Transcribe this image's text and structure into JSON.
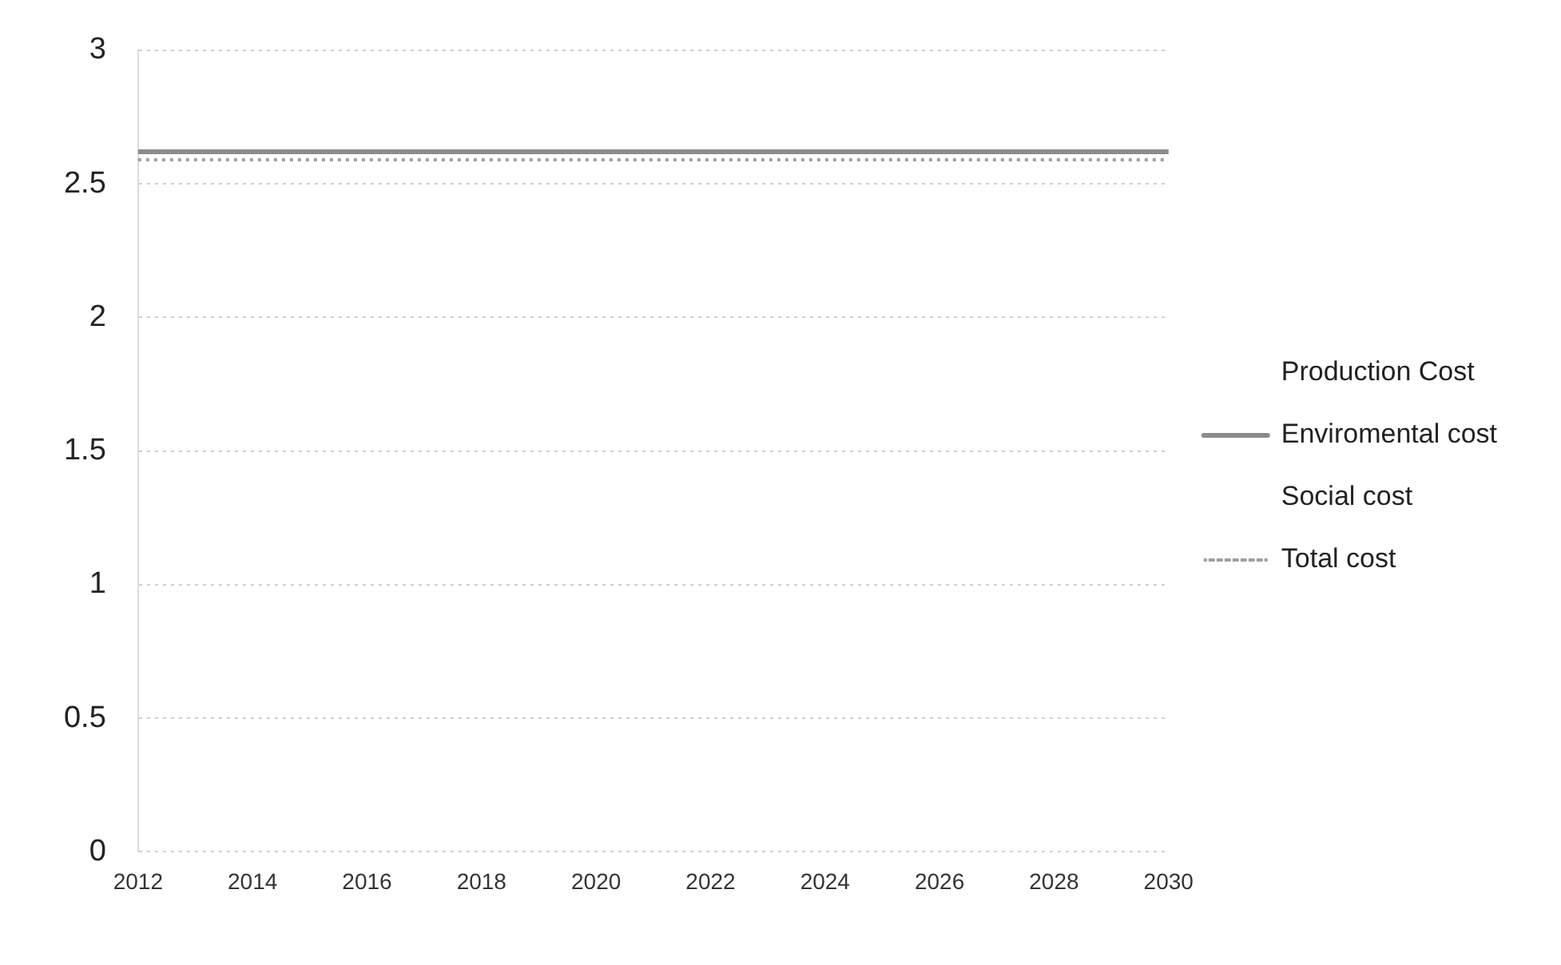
{
  "chart_data": {
    "type": "line",
    "categories": [
      "2012",
      "2014",
      "2016",
      "2018",
      "2020",
      "2022",
      "2024",
      "2026",
      "2028",
      "2030"
    ],
    "series": [
      {
        "name": "Production Cost",
        "values": [
          null,
          null,
          null,
          null,
          null,
          null,
          null,
          null,
          null,
          null
        ]
      },
      {
        "name": "Enviromental cost",
        "color": "#8c8c8c",
        "values": [
          2.62,
          2.62,
          2.62,
          2.62,
          2.62,
          2.62,
          2.62,
          2.62,
          2.62,
          2.62
        ]
      },
      {
        "name": "Social cost",
        "values": [
          null,
          null,
          null,
          null,
          null,
          null,
          null,
          null,
          null,
          null
        ]
      },
      {
        "name": "Total cost",
        "type": "line",
        "line_style": "dotted",
        "color": "#a0a0a0",
        "values": [
          2.59,
          2.59,
          2.59,
          2.59,
          2.59,
          2.59,
          2.59,
          2.59,
          2.59,
          2.59
        ]
      }
    ],
    "ylim": [
      0,
      3
    ],
    "yticks": [
      0,
      0.5,
      1,
      1.5,
      2,
      2.5,
      3
    ],
    "grid": "y",
    "legend": "right",
    "marker": "none"
  }
}
